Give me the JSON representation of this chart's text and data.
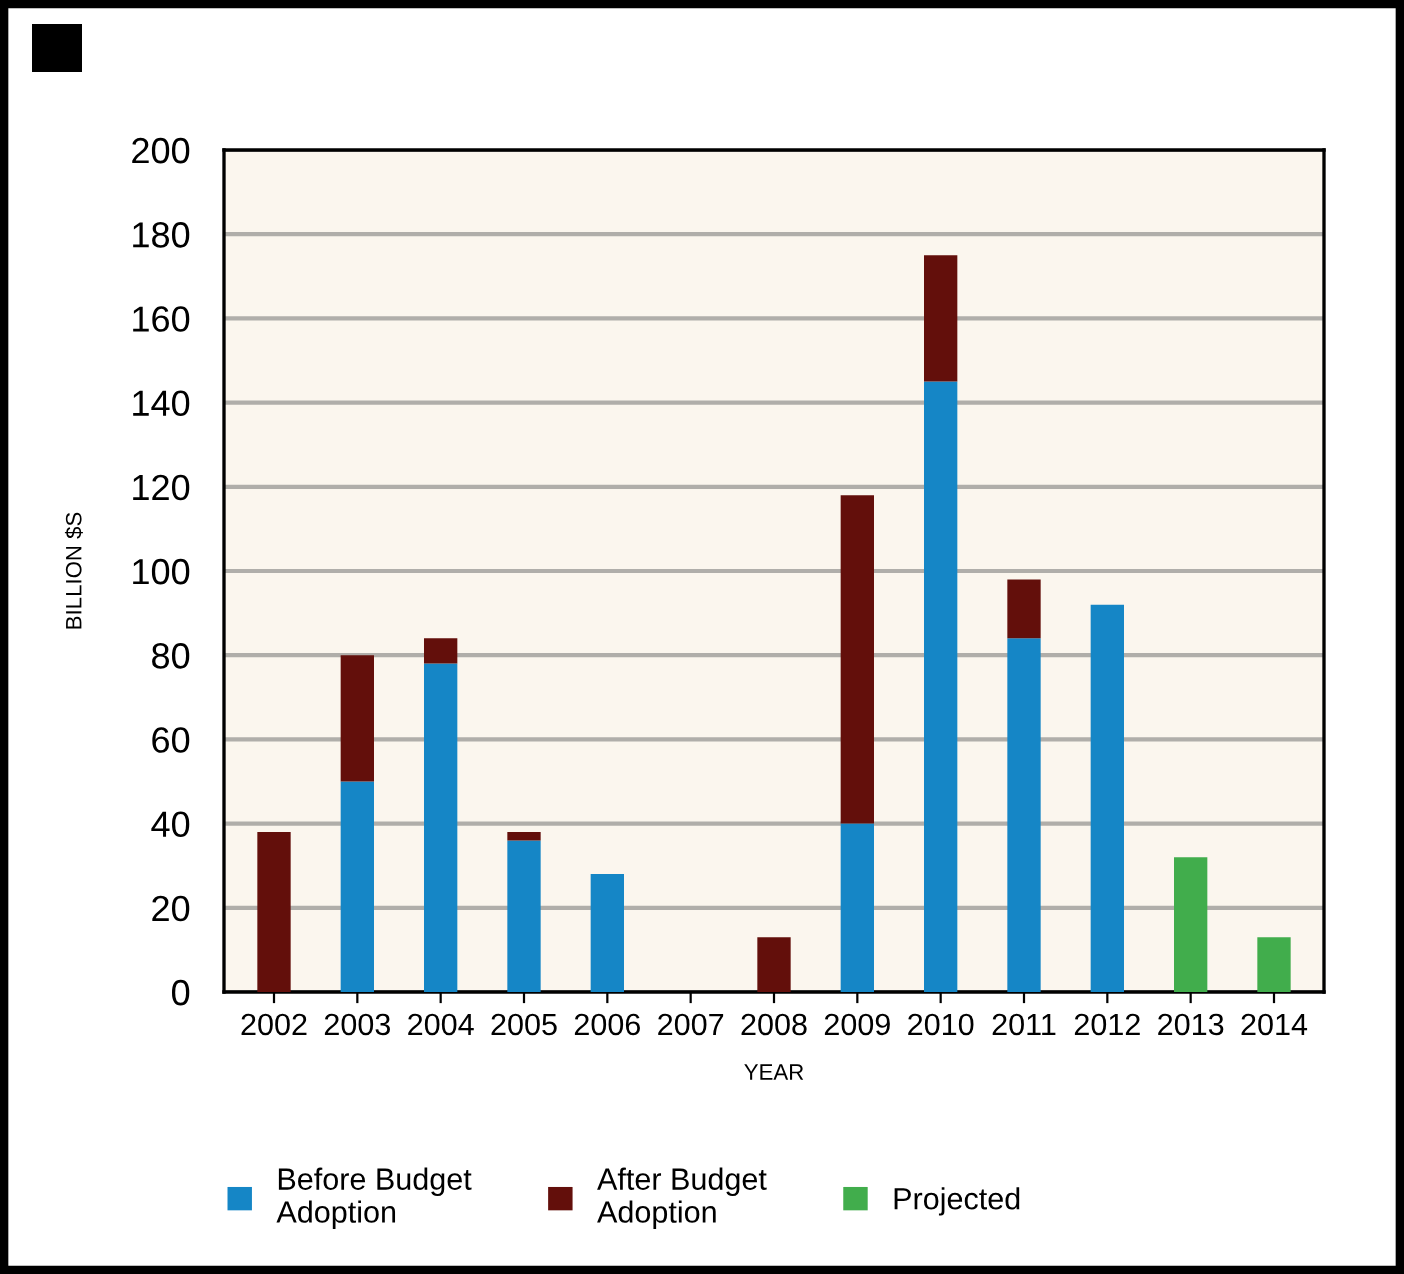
{
  "chart_data": {
    "type": "bar",
    "stacked": true,
    "categories": [
      "2002",
      "2003",
      "2004",
      "2005",
      "2006",
      "2007",
      "2008",
      "2009",
      "2010",
      "2011",
      "2012",
      "2013",
      "2014"
    ],
    "series": [
      {
        "name": "Before Budget\nAdoption",
        "color": "#1586c6",
        "values": [
          null,
          50,
          78,
          36,
          28,
          null,
          null,
          40,
          145,
          84,
          92,
          null,
          null
        ]
      },
      {
        "name": "After Budget\nAdoption",
        "color": "#630f0b",
        "values": [
          38,
          30,
          6,
          2,
          null,
          null,
          13,
          78,
          30,
          14,
          null,
          null,
          null
        ]
      },
      {
        "name": "Projected",
        "color": "#41ad4c",
        "values": [
          null,
          null,
          null,
          null,
          null,
          null,
          null,
          null,
          null,
          null,
          null,
          32,
          13
        ]
      }
    ],
    "xlabel": "YEAR",
    "ylabel": "BILLION $S",
    "ylim": [
      0,
      200
    ],
    "yticks": [
      0,
      20,
      40,
      60,
      80,
      100,
      120,
      140,
      160,
      180,
      200
    ],
    "grid": "y",
    "legend": "bottom left"
  }
}
